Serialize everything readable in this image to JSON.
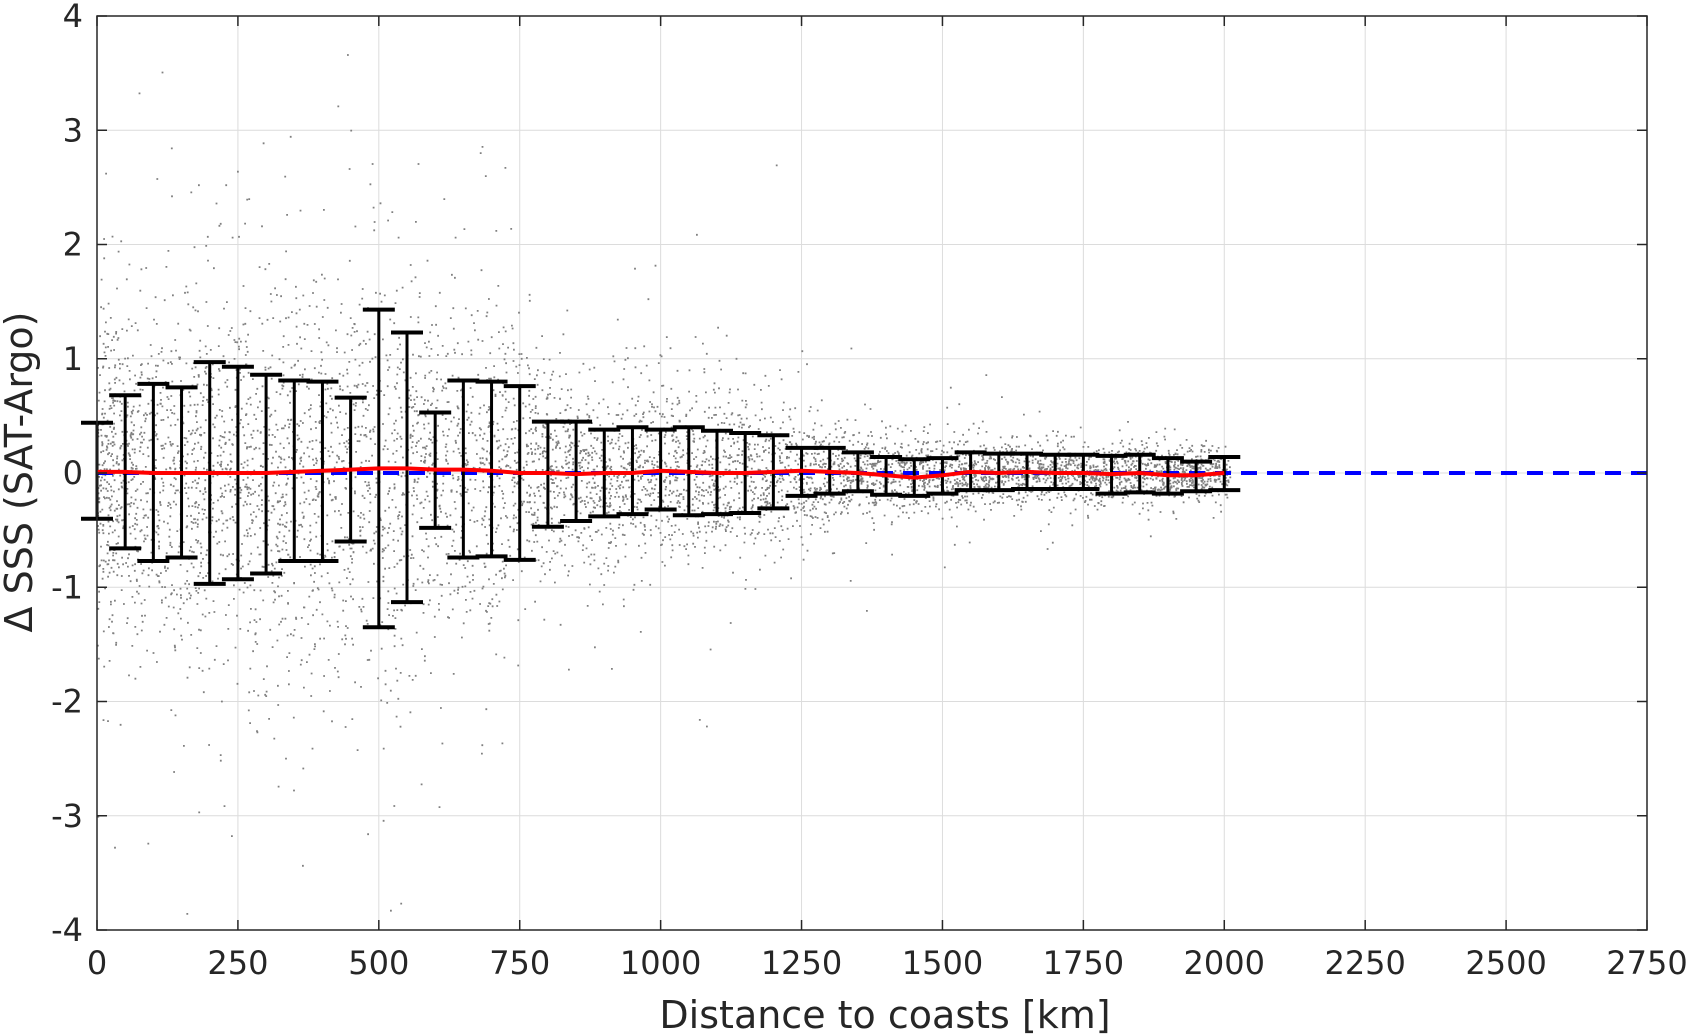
{
  "chart_data": {
    "type": "scatter",
    "title": "",
    "xlabel": "Distance to coasts [km]",
    "ylabel": "Δ SSS (SAT-Argo)",
    "xlim": [
      0,
      2750
    ],
    "ylim": [
      -4,
      4
    ],
    "xticks": [
      0,
      250,
      500,
      750,
      1000,
      1250,
      1500,
      1750,
      2000,
      2250,
      2500,
      2750
    ],
    "yticks": [
      -4,
      -3,
      -2,
      -1,
      0,
      1,
      2,
      3,
      4
    ],
    "xtick_labels": [
      "0",
      "250",
      "500",
      "750",
      "1000",
      "1250",
      "1500",
      "1750",
      "2000",
      "2250",
      "2500",
      "2750"
    ],
    "ytick_labels": [
      "-4",
      "-3",
      "-2",
      "-1",
      "0",
      "1",
      "2",
      "3",
      "4"
    ],
    "grid": true,
    "legend": "none",
    "colors": {
      "scatter": "#808080",
      "errorbar": "#000000",
      "mean_line": "#ff0000",
      "zero_line": "#0000ff",
      "axes": "#262626",
      "grid": "#dcdcdc"
    },
    "zero_line": {
      "y": 0,
      "style": "dashed",
      "x_range": [
        0,
        2750
      ]
    },
    "scatter_spread": {
      "description_x": [
        0,
        100,
        200,
        300,
        400,
        500,
        600,
        700,
        800,
        900,
        1000,
        1100,
        1200,
        1300,
        1400,
        1500,
        1600,
        1700,
        1800,
        1900,
        2000
      ],
      "std": [
        0.6,
        0.75,
        0.9,
        0.9,
        0.85,
        0.95,
        0.7,
        0.65,
        0.45,
        0.4,
        0.4,
        0.37,
        0.33,
        0.2,
        0.18,
        0.15,
        0.14,
        0.13,
        0.12,
        0.12,
        0.1
      ]
    },
    "errorbars": {
      "x": [
        0,
        50,
        100,
        150,
        200,
        250,
        300,
        350,
        400,
        450,
        500,
        550,
        600,
        650,
        700,
        750,
        800,
        850,
        900,
        950,
        1000,
        1050,
        1100,
        1150,
        1200,
        1250,
        1300,
        1350,
        1400,
        1450,
        1500,
        1550,
        1600,
        1650,
        1700,
        1750,
        1800,
        1850,
        1900,
        1950,
        2000
      ],
      "mean": [
        0.01,
        0.01,
        0.0,
        0.0,
        0.0,
        0.0,
        0.0,
        0.01,
        0.02,
        0.03,
        0.04,
        0.04,
        0.03,
        0.03,
        0.02,
        0.0,
        0.0,
        -0.01,
        0.0,
        0.0,
        0.02,
        0.01,
        0.0,
        0.0,
        0.01,
        0.02,
        0.01,
        0.0,
        -0.02,
        -0.04,
        -0.02,
        0.01,
        0.0,
        0.01,
        0.0,
        0.0,
        -0.01,
        0.0,
        -0.02,
        -0.02,
        0.0
      ],
      "upper": [
        0.44,
        0.68,
        0.78,
        0.75,
        0.97,
        0.93,
        0.86,
        0.81,
        0.8,
        0.66,
        1.43,
        1.23,
        0.53,
        0.81,
        0.8,
        0.76,
        0.45,
        0.45,
        0.38,
        0.4,
        0.38,
        0.4,
        0.37,
        0.35,
        0.33,
        0.22,
        0.22,
        0.18,
        0.14,
        0.12,
        0.13,
        0.18,
        0.17,
        0.17,
        0.16,
        0.16,
        0.15,
        0.16,
        0.13,
        0.1,
        0.14
      ],
      "lower": [
        -0.4,
        -0.66,
        -0.77,
        -0.74,
        -0.97,
        -0.93,
        -0.88,
        -0.77,
        -0.77,
        -0.6,
        -1.35,
        -1.13,
        -0.48,
        -0.74,
        -0.73,
        -0.76,
        -0.47,
        -0.42,
        -0.38,
        -0.36,
        -0.32,
        -0.37,
        -0.36,
        -0.35,
        -0.31,
        -0.2,
        -0.18,
        -0.16,
        -0.19,
        -0.2,
        -0.18,
        -0.15,
        -0.15,
        -0.14,
        -0.14,
        -0.14,
        -0.18,
        -0.17,
        -0.18,
        -0.16,
        -0.15
      ]
    }
  }
}
